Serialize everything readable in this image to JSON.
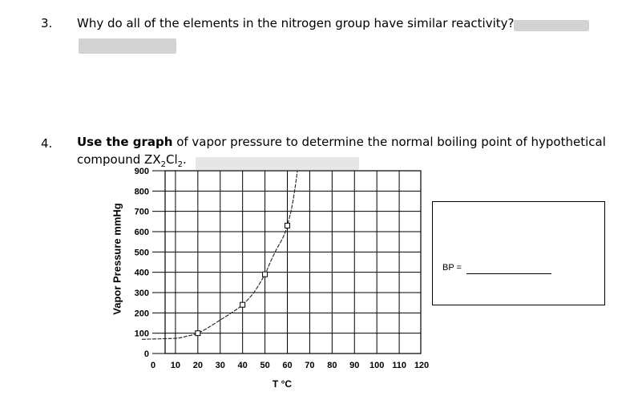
{
  "question3": {
    "number": "3.",
    "text": "Why do all of the elements in the nitrogen group have similar reactivity?"
  },
  "question4": {
    "number": "4.",
    "line1_bold": "Use the graph",
    "line1_rest": "of vapor pressure to determine the normal boiling point of hypothetical",
    "line2_prefix": "compound ZX",
    "sub1": "2",
    "mid": "Cl",
    "sub2": "2",
    "line2_suffix": "."
  },
  "answer_box": {
    "label": "BP ="
  },
  "chart_data": {
    "type": "line",
    "xlabel": "T °C",
    "ylabel": "Vapor Pressure mmHg",
    "xlim": [
      0,
      120
    ],
    "ylim": [
      0,
      900
    ],
    "x_ticks": [
      "0",
      "10",
      "20",
      "30",
      "40",
      "50",
      "60",
      "70",
      "80",
      "90",
      "100",
      "110",
      "120"
    ],
    "y_ticks": [
      "0",
      "100",
      "200",
      "300",
      "400",
      "500",
      "600",
      "700",
      "800",
      "900"
    ],
    "grid": true,
    "series": [
      {
        "x": [
          -5,
          10,
          15,
          20,
          25,
          30,
          35,
          40,
          45,
          50,
          52,
          55,
          58,
          60,
          62,
          63.5,
          64.5
        ],
        "values": [
          70,
          75,
          85,
          100,
          130,
          165,
          200,
          240,
          300,
          390,
          440,
          510,
          570,
          630,
          720,
          820,
          900
        ]
      }
    ],
    "markers": [
      {
        "x": 20,
        "y": 100
      },
      {
        "x": 40,
        "y": 240
      },
      {
        "x": 50,
        "y": 390
      },
      {
        "x": 60,
        "y": 630
      }
    ]
  }
}
